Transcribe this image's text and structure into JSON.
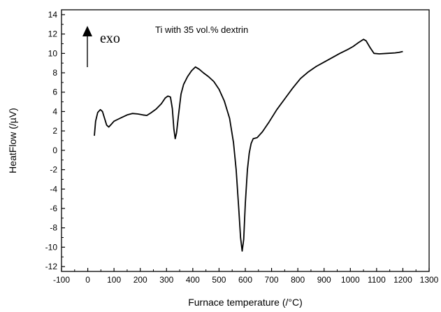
{
  "chart_data": {
    "type": "line",
    "title": "",
    "annotation": "Ti with 35 vol.% dextrin",
    "exo_label": "exo",
    "xlabel": "Furnace temperature (/°C)",
    "ylabel": "HeatFlow (/µV)",
    "xlim": [
      -100,
      1300
    ],
    "ylim": [
      -12.5,
      14.5
    ],
    "xticks": [
      -100,
      0,
      100,
      200,
      300,
      400,
      500,
      600,
      700,
      800,
      900,
      1000,
      1100,
      1200,
      1300
    ],
    "yticks": [
      -12,
      -10,
      -8,
      -6,
      -4,
      -2,
      0,
      2,
      4,
      6,
      8,
      10,
      12,
      14
    ],
    "grid": false,
    "legend": "none",
    "series": [
      {
        "color": "#000000",
        "points": [
          [
            25,
            1.5
          ],
          [
            30,
            3.0
          ],
          [
            38,
            3.9
          ],
          [
            48,
            4.2
          ],
          [
            56,
            4.0
          ],
          [
            64,
            3.3
          ],
          [
            72,
            2.6
          ],
          [
            80,
            2.4
          ],
          [
            90,
            2.7
          ],
          [
            100,
            3.0
          ],
          [
            115,
            3.2
          ],
          [
            130,
            3.4
          ],
          [
            150,
            3.65
          ],
          [
            170,
            3.8
          ],
          [
            190,
            3.75
          ],
          [
            210,
            3.65
          ],
          [
            225,
            3.6
          ],
          [
            240,
            3.85
          ],
          [
            260,
            4.25
          ],
          [
            280,
            4.8
          ],
          [
            295,
            5.4
          ],
          [
            305,
            5.6
          ],
          [
            315,
            5.5
          ],
          [
            322,
            4.3
          ],
          [
            328,
            2.2
          ],
          [
            333,
            1.2
          ],
          [
            338,
            1.8
          ],
          [
            345,
            3.5
          ],
          [
            355,
            5.8
          ],
          [
            365,
            6.8
          ],
          [
            380,
            7.6
          ],
          [
            395,
            8.2
          ],
          [
            410,
            8.6
          ],
          [
            425,
            8.35
          ],
          [
            440,
            8.0
          ],
          [
            460,
            7.6
          ],
          [
            480,
            7.1
          ],
          [
            500,
            6.3
          ],
          [
            520,
            5.1
          ],
          [
            540,
            3.3
          ],
          [
            555,
            0.8
          ],
          [
            565,
            -2.0
          ],
          [
            575,
            -6.0
          ],
          [
            582,
            -9.0
          ],
          [
            588,
            -10.4
          ],
          [
            594,
            -9.2
          ],
          [
            600,
            -5.5
          ],
          [
            608,
            -2.0
          ],
          [
            615,
            -0.3
          ],
          [
            622,
            0.7
          ],
          [
            630,
            1.2
          ],
          [
            645,
            1.3
          ],
          [
            665,
            1.9
          ],
          [
            690,
            2.9
          ],
          [
            720,
            4.2
          ],
          [
            750,
            5.3
          ],
          [
            780,
            6.4
          ],
          [
            810,
            7.4
          ],
          [
            840,
            8.1
          ],
          [
            870,
            8.65
          ],
          [
            900,
            9.1
          ],
          [
            930,
            9.55
          ],
          [
            960,
            10.0
          ],
          [
            990,
            10.4
          ],
          [
            1010,
            10.7
          ],
          [
            1030,
            11.1
          ],
          [
            1050,
            11.45
          ],
          [
            1060,
            11.3
          ],
          [
            1075,
            10.6
          ],
          [
            1090,
            10.0
          ],
          [
            1110,
            9.95
          ],
          [
            1140,
            10.0
          ],
          [
            1170,
            10.05
          ],
          [
            1185,
            10.1
          ],
          [
            1200,
            10.2
          ]
        ]
      }
    ]
  }
}
